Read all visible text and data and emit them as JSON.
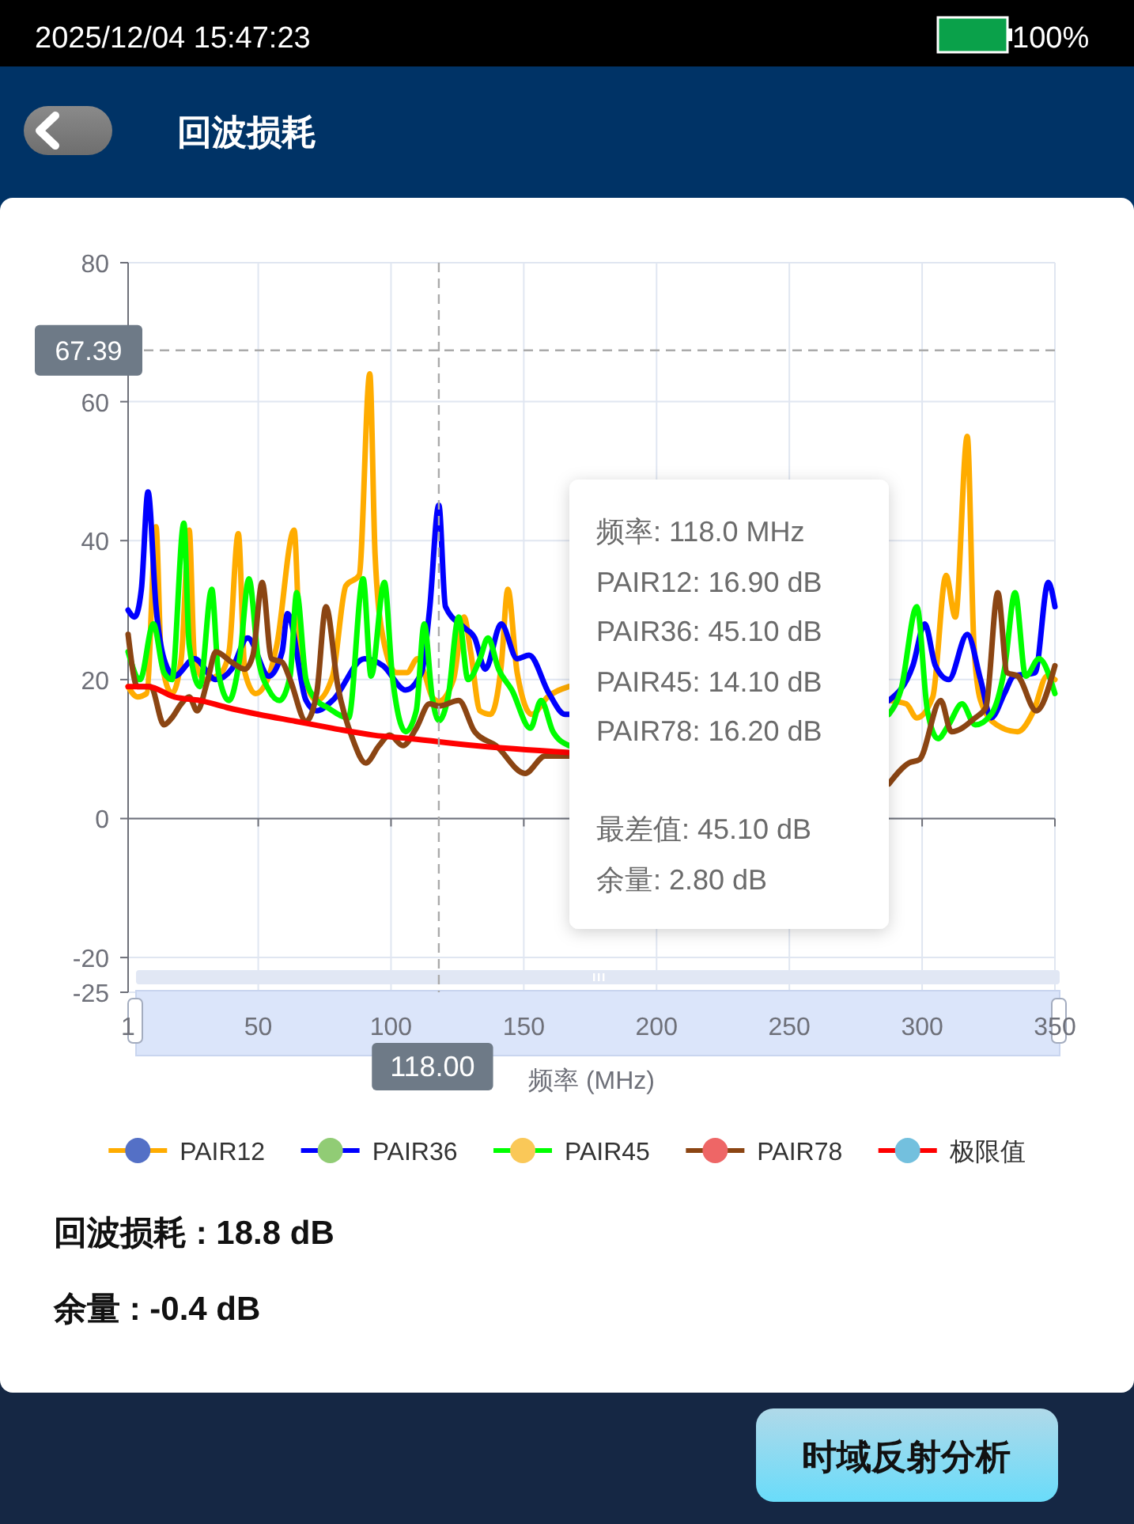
{
  "chart_data": {
    "type": "line",
    "title": "回波损耗",
    "xlabel": "频率 (MHz)",
    "xlim": [
      1,
      350
    ],
    "xticks": [
      1,
      50,
      100,
      150,
      200,
      250,
      300,
      350
    ],
    "ylim": [
      -25,
      80
    ],
    "yticks": [
      -25,
      -20,
      0,
      20,
      40,
      60,
      80
    ],
    "grid": true,
    "legend": "bottom",
    "series": [
      {
        "name": "PAIR12",
        "color": "#ffac00",
        "x": [
          1,
          4.5,
          8,
          11.5,
          13.5,
          17.5,
          21,
          24,
          26,
          30,
          36,
          39,
          42.5,
          45,
          49,
          54,
          57,
          63.5,
          66,
          72,
          78,
          83,
          88,
          92,
          94,
          97,
          102,
          106,
          110,
          112.5,
          115.5,
          118,
          123.5,
          127.5,
          130,
          133.5,
          137.5,
          141.5,
          144,
          147.5,
          153,
          159,
          167,
          200,
          287.5,
          294,
          298,
          304,
          309,
          312.5,
          317,
          319.5,
          322,
          328,
          336,
          342,
          347,
          350
        ],
        "values": [
          19,
          17.5,
          18,
          42,
          23,
          18,
          23,
          41.5,
          23,
          20,
          21,
          24,
          41,
          21,
          18,
          20.5,
          25,
          41.5,
          23,
          17,
          20.5,
          33.5,
          35,
          64,
          38,
          26,
          21,
          21,
          23,
          21,
          17.5,
          16.9,
          20,
          29,
          24,
          15.5,
          15,
          22,
          33,
          21,
          15,
          17.5,
          19,
          null,
          17,
          16.5,
          14.5,
          17.5,
          35,
          29,
          55,
          25,
          17,
          13.5,
          12.5,
          15.5,
          20.5,
          20
        ]
      },
      {
        "name": "PAIR36",
        "color": "#0000ff",
        "x": [
          1,
          3.5,
          6,
          8.5,
          11.5,
          14.5,
          18.5,
          26,
          34,
          40,
          46,
          54,
          59,
          61,
          68,
          72,
          78,
          90,
          97,
          105.5,
          111.5,
          114.5,
          118,
          120.5,
          127.5,
          131.5,
          135.5,
          141.5,
          147.5,
          152,
          159.5,
          165.5,
          167,
          200,
          287.5,
          296.5,
          301,
          305,
          310,
          317,
          322,
          326,
          331,
          334.5,
          342.5,
          347.5,
          350
        ],
        "values": [
          30,
          29,
          33,
          47,
          30.5,
          23,
          20.5,
          23,
          20,
          21.5,
          26,
          20.5,
          24,
          29.5,
          17,
          15.5,
          17,
          23,
          22,
          18.5,
          21,
          30,
          45.1,
          30.5,
          27.5,
          26,
          21.5,
          28,
          23,
          23.5,
          18,
          15,
          15,
          null,
          17,
          22,
          28,
          22,
          20,
          26.5,
          20,
          14.5,
          18,
          20.5,
          21,
          34,
          30.5
        ]
      },
      {
        "name": "PAIR45",
        "color": "#00ff00",
        "x": [
          1,
          5.5,
          10.5,
          14.5,
          17.5,
          22,
          24,
          28,
          32.5,
          35,
          39,
          43,
          46.5,
          50,
          54,
          58,
          62,
          64.5,
          68,
          72,
          76,
          84,
          89.5,
          92.5,
          97.5,
          100.5,
          105.5,
          109.5,
          112.5,
          115.5,
          118,
          121.5,
          125.5,
          129,
          133.5,
          136.5,
          140.5,
          145.5,
          152.5,
          156.5,
          161,
          167,
          200,
          287.5,
          292,
          298,
          302,
          306,
          310,
          315,
          320,
          326,
          331,
          335,
          339,
          344,
          350
        ],
        "values": [
          24,
          20,
          28,
          21,
          20,
          42.5,
          25,
          19,
          33,
          21,
          17,
          23,
          34.5,
          23,
          18.5,
          17,
          20.5,
          32.5,
          20,
          17,
          16,
          14.5,
          34.5,
          20.5,
          34,
          20.5,
          12.5,
          15.5,
          28,
          17.5,
          14.1,
          17.5,
          29,
          20,
          23,
          26,
          21.5,
          18.5,
          13,
          17,
          12.5,
          10.5,
          null,
          15,
          18.5,
          30.5,
          15.5,
          11.5,
          13.5,
          16.5,
          13.5,
          15,
          21.5,
          32.5,
          20.5,
          23,
          18
        ]
      },
      {
        "name": "PAIR78",
        "color": "#8b4513",
        "x": [
          1,
          4.5,
          9.5,
          14.5,
          17.5,
          21,
          24,
          27,
          31,
          34,
          40,
          45,
          48,
          51.5,
          55,
          59,
          62,
          68,
          72,
          75.5,
          80,
          85.5,
          90.5,
          95.5,
          99.5,
          104.5,
          109.5,
          114.5,
          118,
          125.5,
          131.5,
          139.5,
          150.5,
          158,
          167,
          200,
          287.5,
          295,
          299,
          307,
          311,
          320,
          324,
          328.5,
          332,
          336,
          343,
          350
        ],
        "values": [
          26.5,
          19,
          19,
          13.5,
          14.5,
          16.5,
          17.5,
          15.5,
          20,
          24,
          22.5,
          21.5,
          23.5,
          34,
          23,
          22.5,
          20,
          14,
          18,
          30.5,
          19,
          11.5,
          8,
          10.5,
          12,
          10.5,
          13,
          16.5,
          16.2,
          17,
          12.5,
          10.5,
          6.5,
          9,
          9,
          null,
          5,
          8,
          8.5,
          17,
          12.5,
          14.5,
          16,
          32.5,
          21,
          20.5,
          15.5,
          22
        ]
      },
      {
        "name": "极限值",
        "color": "#ff0000",
        "x": [
          1,
          8.5,
          18.5,
          28,
          38,
          50,
          64,
          78,
          93.5,
          107.5,
          131.5,
          167
        ],
        "values": [
          19,
          19,
          17.5,
          17,
          16,
          15,
          14,
          13,
          12,
          11.5,
          10.5,
          9.5
        ]
      }
    ],
    "ref_lines": [
      {
        "axis": "x",
        "value": 118,
        "label": "118.00",
        "color": "#aaaaaa",
        "line_style": "dashed"
      },
      {
        "axis": "y",
        "value": 67.39,
        "label": "67.39",
        "color": "#aaaaaa",
        "line_style": "dashed"
      }
    ],
    "annotations": [
      "2025/12/04 15:47:23",
      "100%",
      "频率: 118.0 MHz",
      "PAIR12: 16.90 dB",
      "PAIR36: 45.10 dB",
      "PAIR45: 14.10 dB",
      "PAIR78: 16.20 dB",
      "最差值: 45.10 dB",
      "余量: 2.80 dB",
      "回波损耗 : 18.8 dB",
      "余量 : -0.4 dB",
      "时域反射分析"
    ]
  }
}
